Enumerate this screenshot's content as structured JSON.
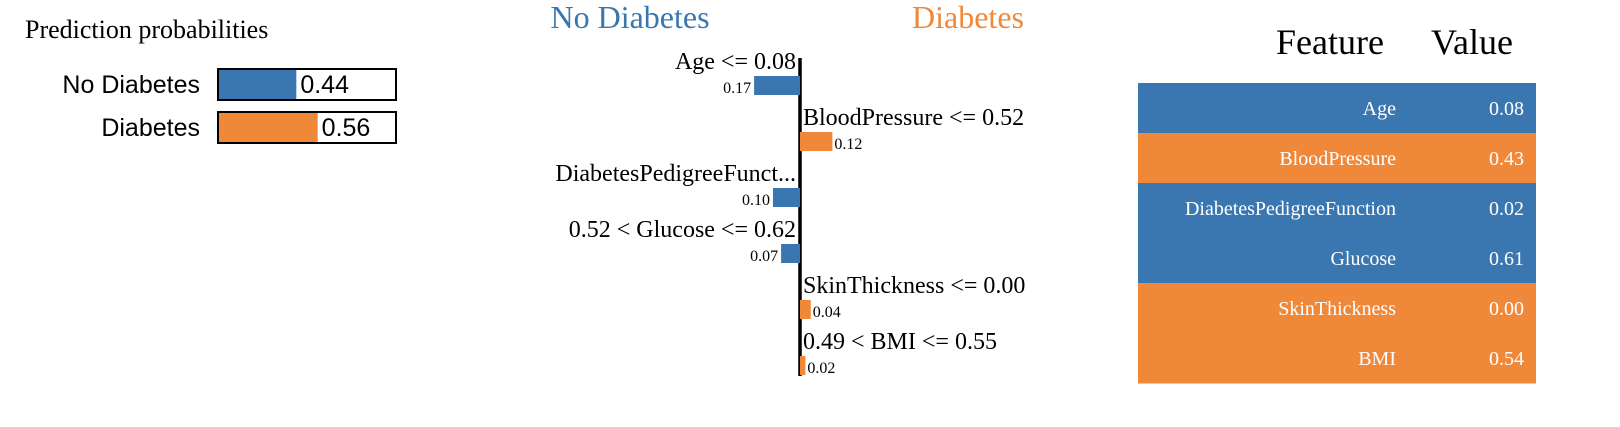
{
  "colors": {
    "negative": "#3a77b0",
    "positive": "#f0883a",
    "text": "#000000",
    "table_text": "#ffffff"
  },
  "prediction": {
    "title": "Prediction probabilities",
    "rows": [
      {
        "label": "No Diabetes",
        "value": 0.44,
        "value_label": "0.44",
        "color": "#3a77b0"
      },
      {
        "label": "Diabetes",
        "value": 0.56,
        "value_label": "0.56",
        "color": "#f0883a"
      }
    ]
  },
  "explanation": {
    "negative_class": "No Diabetes",
    "positive_class": "Diabetes",
    "features": [
      {
        "label": "Age <= 0.08",
        "weight": -0.17,
        "weight_label": "0.17"
      },
      {
        "label": "BloodPressure <= 0.52",
        "weight": 0.12,
        "weight_label": "0.12"
      },
      {
        "label": "DiabetesPedigreeFunct...",
        "weight": -0.1,
        "weight_label": "0.10"
      },
      {
        "label": "0.52 < Glucose <= 0.62",
        "weight": -0.07,
        "weight_label": "0.07"
      },
      {
        "label": "SkinThickness <= 0.00",
        "weight": 0.04,
        "weight_label": "0.04"
      },
      {
        "label": "0.49 < BMI <= 0.55",
        "weight": 0.02,
        "weight_label": "0.02"
      }
    ]
  },
  "table": {
    "headers": [
      "Feature",
      "Value"
    ],
    "rows": [
      {
        "feature": "Age",
        "value": "0.08",
        "class": "negative"
      },
      {
        "feature": "BloodPressure",
        "value": "0.43",
        "class": "positive"
      },
      {
        "feature": "DiabetesPedigreeFunction",
        "value": "0.02",
        "class": "negative"
      },
      {
        "feature": "Glucose",
        "value": "0.61",
        "class": "negative"
      },
      {
        "feature": "SkinThickness",
        "value": "0.00",
        "class": "positive"
      },
      {
        "feature": "BMI",
        "value": "0.54",
        "class": "positive"
      }
    ]
  },
  "chart_data": [
    {
      "type": "bar",
      "title": "Prediction probabilities",
      "orientation": "horizontal",
      "categories": [
        "No Diabetes",
        "Diabetes"
      ],
      "values": [
        0.44,
        0.56
      ],
      "xlim": [
        0,
        1
      ]
    },
    {
      "type": "bar",
      "orientation": "horizontal",
      "categories": [
        "Age <= 0.08",
        "BloodPressure <= 0.52",
        "DiabetesPedigreeFunct...",
        "0.52 < Glucose <= 0.62",
        "SkinThickness <= 0.00",
        "0.49 < BMI <= 0.55"
      ],
      "values": [
        -0.17,
        0.12,
        -0.1,
        -0.07,
        0.04,
        0.02
      ],
      "legend": [
        "No Diabetes",
        "Diabetes"
      ]
    },
    {
      "type": "table",
      "columns": [
        "Feature",
        "Value"
      ],
      "rows": [
        [
          "Age",
          "0.08"
        ],
        [
          "BloodPressure",
          "0.43"
        ],
        [
          "DiabetesPedigreeFunction",
          "0.02"
        ],
        [
          "Glucose",
          "0.61"
        ],
        [
          "SkinThickness",
          "0.00"
        ],
        [
          "BMI",
          "0.54"
        ]
      ]
    }
  ]
}
